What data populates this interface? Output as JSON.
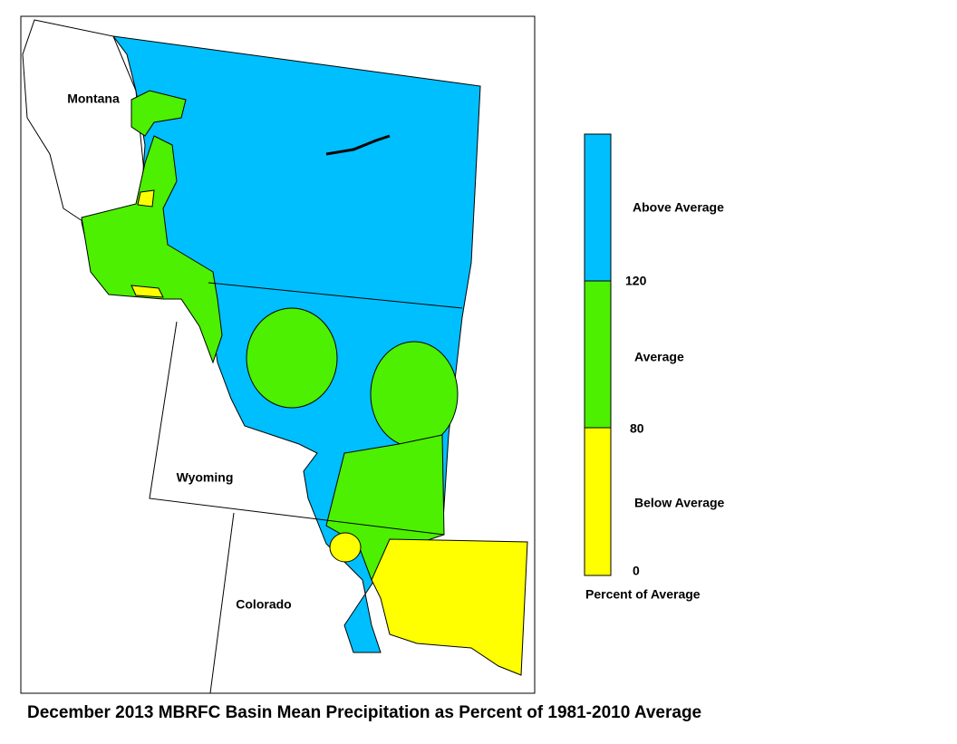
{
  "title": "December 2013 MBRFC Basin Mean Precipitation as Percent of 1981-2010 Average",
  "state_labels": [
    "Montana",
    "Wyoming",
    "Colorado"
  ],
  "legend": {
    "title": "Percent of Average",
    "classes": [
      {
        "label": "Below Average",
        "color": "#ffff00"
      },
      {
        "label": "Average",
        "color": "#4cf000"
      },
      {
        "label": "Above Average",
        "color": "#00bfff"
      }
    ],
    "breaks": [
      0,
      80,
      120
    ]
  }
}
